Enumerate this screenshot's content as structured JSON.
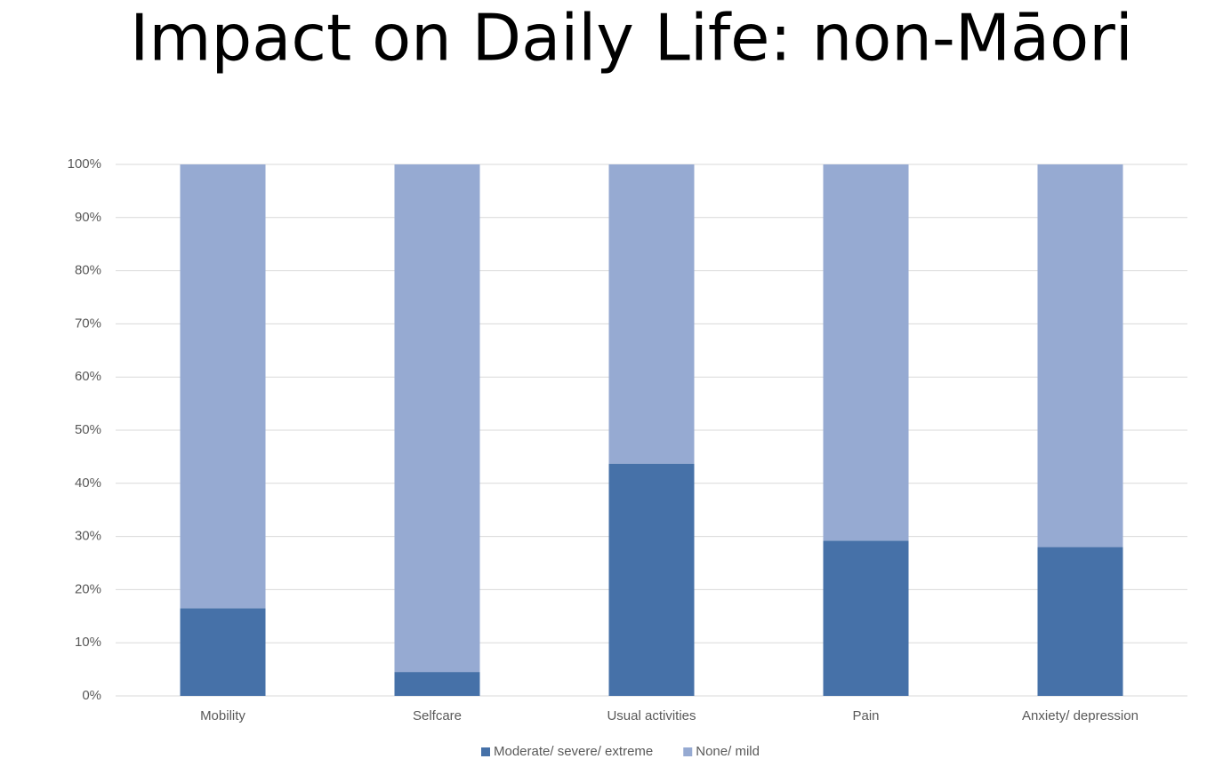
{
  "chart_data": {
    "type": "bar",
    "stacked": true,
    "title": "Impact on Daily Life: non-Māori",
    "categories": [
      "Mobility",
      "Selfcare",
      "Usual activities",
      "Pain",
      "Anxiety/ depression"
    ],
    "series": [
      {
        "name": "Moderate/ severe/ extreme",
        "color": "#4671a8",
        "values": [
          16.5,
          4.5,
          43.7,
          29.2,
          28
        ]
      },
      {
        "name": "None/ mild",
        "color": "#96aad2",
        "values": [
          83.5,
          95.5,
          56.3,
          70.8,
          72
        ]
      }
    ],
    "ylim": [
      0,
      100
    ],
    "yticks": [
      {
        "value": 0,
        "label": "0%"
      },
      {
        "value": 10,
        "label": "10%"
      },
      {
        "value": 20,
        "label": "20%"
      },
      {
        "value": 30,
        "label": "30%"
      },
      {
        "value": 40,
        "label": "40%"
      },
      {
        "value": 50,
        "label": "50%"
      },
      {
        "value": 60,
        "label": "60%"
      },
      {
        "value": 70,
        "label": "70%"
      },
      {
        "value": 80,
        "label": "80%"
      },
      {
        "value": 90,
        "label": "90%"
      },
      {
        "value": 100,
        "label": "100%"
      }
    ],
    "grid": true,
    "legend": "bottom"
  }
}
